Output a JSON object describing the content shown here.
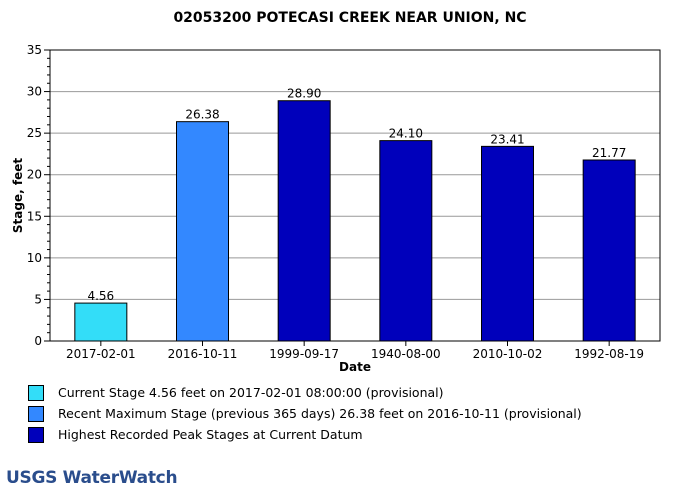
{
  "chart_data": {
    "type": "bar",
    "title": "02053200 POTECASI CREEK NEAR UNION, NC",
    "xlabel": "Date",
    "ylabel": "Stage, feet",
    "ylim": [
      0,
      35
    ],
    "yticks": [
      0,
      5,
      10,
      15,
      20,
      25,
      30,
      35
    ],
    "grid": true,
    "categories": [
      "2017-02-01",
      "2016-10-11",
      "1999-09-17",
      "1940-08-00",
      "2010-10-02",
      "1992-08-19"
    ],
    "values": [
      4.56,
      26.38,
      28.9,
      24.1,
      23.41,
      21.77
    ],
    "value_labels": [
      "4.56",
      "26.38",
      "28.90",
      "24.10",
      "23.41",
      "21.77"
    ],
    "bar_colors": [
      "#33ddf8",
      "#3388ff",
      "#0000bb",
      "#0000bb",
      "#0000bb",
      "#0000bb"
    ],
    "legend": [
      {
        "color": "#33ddf8",
        "label": "Current Stage 4.56 feet on 2017-02-01 08:00:00 (provisional)"
      },
      {
        "color": "#3388ff",
        "label": "Recent Maximum Stage (previous 365 days) 26.38 feet on 2016-10-11 (provisional)"
      },
      {
        "color": "#0000bb",
        "label": "Highest Recorded Peak Stages at Current Datum"
      }
    ]
  },
  "branding": {
    "logo_text": "USGS WaterWatch",
    "logo_color": "#2a4d8c"
  }
}
